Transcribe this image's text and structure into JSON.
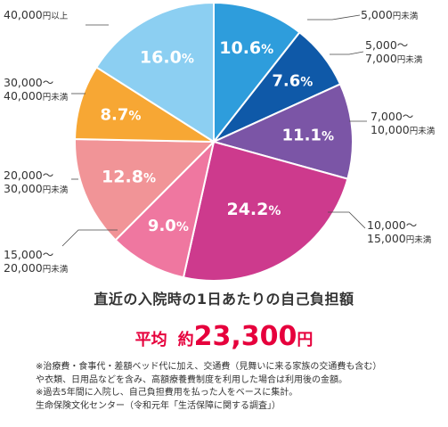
{
  "chart_data": {
    "type": "pie",
    "categories": [
      "5,000円未満",
      "5,000〜7,000円未満",
      "7,000〜10,000円未満",
      "10,000〜15,000円未満",
      "15,000〜20,000円未満",
      "20,000〜30,000円未満",
      "30,000〜40,000円未満",
      "40,000円以上"
    ],
    "values": [
      10.6,
      7.6,
      11.1,
      24.2,
      9.0,
      12.8,
      8.7,
      16.0
    ],
    "value_labels": [
      "10.6",
      "7.6",
      "11.1",
      "24.2",
      "9.0",
      "12.8",
      "8.7",
      "16.0"
    ],
    "unit": "%",
    "colors": [
      "#2e9ddc",
      "#0f59a8",
      "#7b55a6",
      "#cd3a8d",
      "#ef77a0",
      "#f19497",
      "#f7a734",
      "#8ccff2"
    ],
    "label_lines": [
      [
        {
          "main": "5,000",
          "small": "円未満"
        }
      ],
      [
        {
          "main": "5,000〜",
          "small": ""
        },
        {
          "main": "7,000",
          "small": "円未満"
        }
      ],
      [
        {
          "main": "7,000〜",
          "small": ""
        },
        {
          "main": "10,000",
          "small": "円未満"
        }
      ],
      [
        {
          "main": "10,000〜",
          "small": ""
        },
        {
          "main": "15,000",
          "small": "円未満"
        }
      ],
      [
        {
          "main": "15,000〜",
          "small": ""
        },
        {
          "main": "20,000",
          "small": "円未満"
        }
      ],
      [
        {
          "main": "20,000〜",
          "small": ""
        },
        {
          "main": "30,000",
          "small": "円未満"
        }
      ],
      [
        {
          "main": "30,000〜",
          "small": ""
        },
        {
          "main": "40,000",
          "small": "円未満"
        }
      ],
      [
        {
          "main": "40,000",
          "small": "円以上"
        }
      ]
    ],
    "title": "直近の入院時の1日あたりの自己負担額"
  },
  "average": {
    "label": "平均",
    "approx": "約",
    "amount": "23,300",
    "unit": "円"
  },
  "notes": [
    "※治療費・食事代・差額ベッド代に加え、交通費（見舞いに来る家族の交通費も含む）",
    "や衣類、日用品などを含み、高額療養費制度を利用した場合は利用後の金額。",
    "※過去5年間に入院し、自己負担費用を払った人をベースに集計。",
    "生命保険文化センター（令和元年「生活保障に関する調査」）"
  ]
}
